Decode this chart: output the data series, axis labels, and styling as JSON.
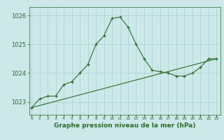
{
  "title": "Graphe pression niveau de la mer (hPa)",
  "line1_x": [
    0,
    1,
    2,
    3,
    4,
    5,
    6,
    7,
    8,
    9,
    10,
    11,
    12,
    13,
    14,
    15,
    16,
    17,
    18,
    19,
    20,
    21,
    22,
    23
  ],
  "line1_y": [
    1022.8,
    1023.1,
    1023.2,
    1023.2,
    1023.6,
    1023.7,
    1024.0,
    1024.3,
    1025.0,
    1025.3,
    1025.9,
    1025.95,
    1025.6,
    1025.0,
    1024.5,
    1024.1,
    1024.05,
    1024.0,
    1023.9,
    1023.9,
    1024.0,
    1024.2,
    1024.5,
    1024.5
  ],
  "trend_x": [
    0,
    23
  ],
  "trend_y": [
    1022.8,
    1024.5
  ],
  "line_color": "#2d6a2d",
  "bg_color": "#cce8e8",
  "grid_color": "#aad0d0",
  "text_color": "#2d6a2d",
  "ylim_min": 1022.55,
  "ylim_max": 1026.3,
  "xlim_min": -0.3,
  "xlim_max": 23.5,
  "yticks": [
    1023,
    1024,
    1025,
    1026
  ],
  "xticks": [
    0,
    1,
    2,
    3,
    4,
    5,
    6,
    7,
    8,
    9,
    10,
    11,
    12,
    13,
    14,
    15,
    16,
    17,
    18,
    19,
    20,
    21,
    22,
    23
  ],
  "title_fontsize": 6.5,
  "ytick_fontsize": 6,
  "xtick_fontsize": 4.2
}
